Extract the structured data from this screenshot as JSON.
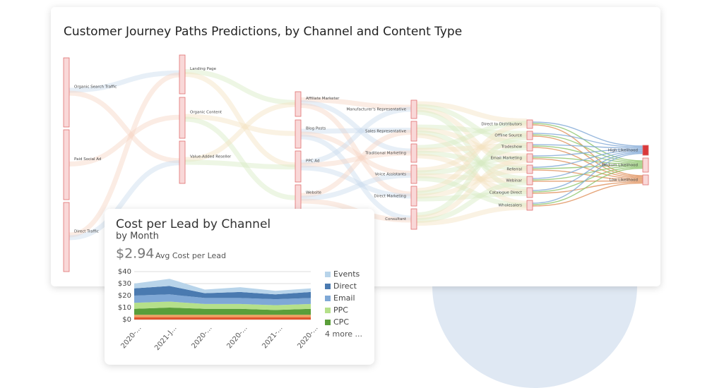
{
  "sankey": {
    "title": "Customer Journey Paths Predictions, by Channel and Content Type",
    "columns": [
      [
        "Organic Search Traffic",
        "Paid Social Ad",
        "Direct Traffic"
      ],
      [
        "Landing Page",
        "Organic Content",
        "Value-Added Reseller"
      ],
      [
        "Affiliate Marketer",
        "Blog Posts",
        "PPC Ad",
        "Website"
      ],
      [
        "Manufacturer's Representative",
        "Sales Representative",
        "Traditional Marketing",
        "Voice Assistants",
        "Direct Marketing",
        "Consultant"
      ],
      [
        "Direct to Distributors",
        "Offline Source",
        "Tradeshow",
        "Email Marketing",
        "Referral",
        "Webinar",
        "Catalogue Direct",
        "Wholesalers"
      ],
      [
        "High Likelihood",
        "Medium Likelihood",
        "Low Likelihood"
      ]
    ]
  },
  "chart_data": {
    "type": "area",
    "stacked": true,
    "title": "Cost per Lead by Channel",
    "subtitle": "by Month",
    "kpi_value": "$2.94",
    "kpi_label": "Avg Cost per Lead",
    "x": [
      "2020-...",
      "2021-J...",
      "2020-...",
      "2020-...",
      "2021-...",
      "2020-..."
    ],
    "ylim": [
      0,
      40
    ],
    "yticks": [
      {
        "value": 0,
        "label": "$0"
      },
      {
        "value": 10,
        "label": "$10"
      },
      {
        "value": 20,
        "label": "$20"
      },
      {
        "value": 30,
        "label": "$30"
      },
      {
        "value": 40,
        "label": "$40"
      }
    ],
    "grid": true,
    "series": [
      {
        "color": "#e0562e",
        "values": [
          2,
          2,
          2,
          2,
          2,
          2
        ]
      },
      {
        "color": "#f0a060",
        "values": [
          2,
          2,
          2,
          2,
          2,
          2
        ]
      },
      {
        "name": "CPC",
        "color": "#5a9e3a",
        "values": [
          5,
          6,
          5,
          5,
          4,
          5
        ]
      },
      {
        "name": "PPC",
        "color": "#b5e08a",
        "values": [
          5,
          5,
          4,
          4,
          4,
          4
        ]
      },
      {
        "name": "Email",
        "color": "#7fa8d6",
        "values": [
          6,
          6,
          5,
          5,
          5,
          5
        ]
      },
      {
        "name": "Direct",
        "color": "#4a7ab0",
        "values": [
          6,
          7,
          4,
          5,
          4,
          5
        ]
      },
      {
        "name": "Events",
        "color": "#b8d4ea",
        "values": [
          4,
          6,
          3,
          4,
          3,
          3
        ]
      }
    ],
    "legend_more": "4 more ..."
  }
}
